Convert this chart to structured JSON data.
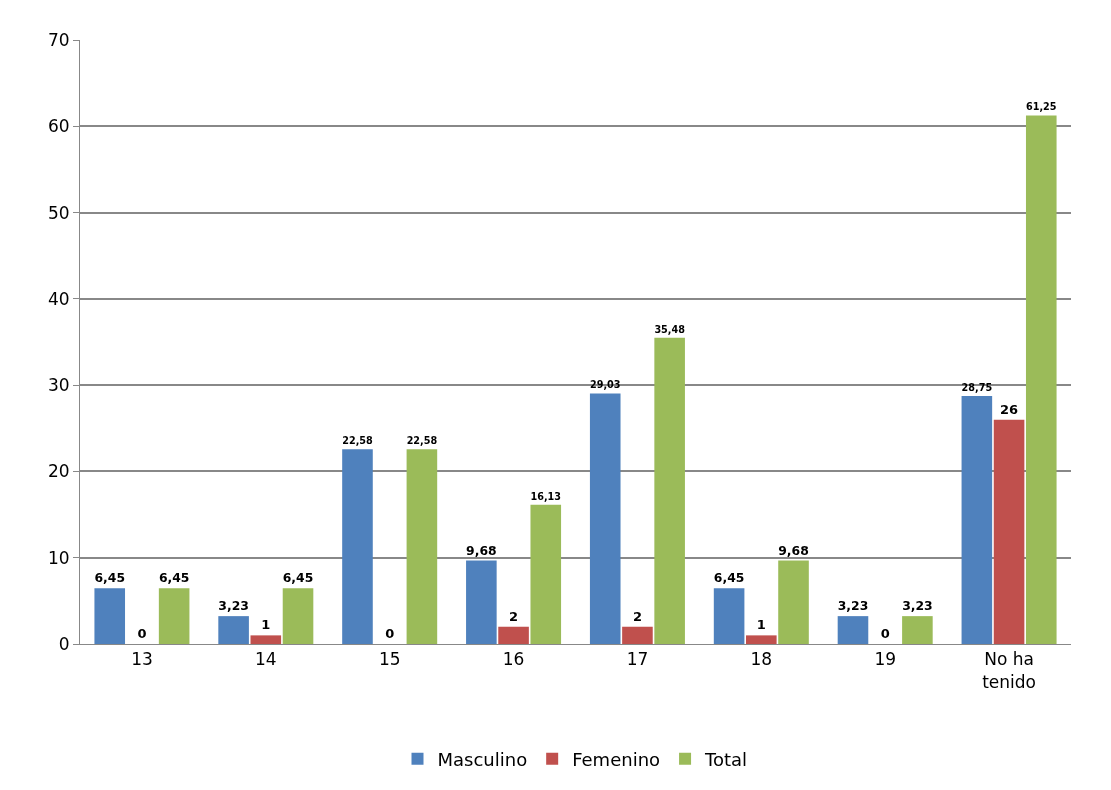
{
  "chart_data": {
    "type": "bar",
    "categories": [
      "13",
      "14",
      "15",
      "16",
      "17",
      "18",
      "19",
      "No ha tenido"
    ],
    "series": [
      {
        "name": "Masculino",
        "color": "#4f81bd",
        "values": [
          6.45,
          3.23,
          22.58,
          9.68,
          29.03,
          6.45,
          3.23,
          28.75
        ],
        "value_labels": [
          "6,45",
          "3,23",
          "22,58",
          "9,68",
          "29,03",
          "6,45",
          "3,23",
          "28,75"
        ]
      },
      {
        "name": "Femenino",
        "color": "#c0504d",
        "values": [
          0,
          1,
          0,
          2,
          2,
          1,
          0,
          26
        ],
        "value_labels": [
          "0",
          "1",
          "0",
          "2",
          "2",
          "1",
          "0",
          "26"
        ]
      },
      {
        "name": "Total",
        "color": "#9bbb59",
        "values": [
          6.45,
          6.45,
          22.58,
          16.13,
          35.48,
          9.68,
          3.23,
          61.25
        ],
        "value_labels": [
          "6,45",
          "6,45",
          "22,58",
          "16,13",
          "35,48",
          "9,68",
          "3,23",
          "61,25"
        ]
      }
    ],
    "ylim": [
      0,
      70
    ],
    "yticks": [
      0,
      10,
      20,
      30,
      40,
      50,
      60,
      70
    ],
    "grid": "y",
    "legend": "bottom"
  }
}
